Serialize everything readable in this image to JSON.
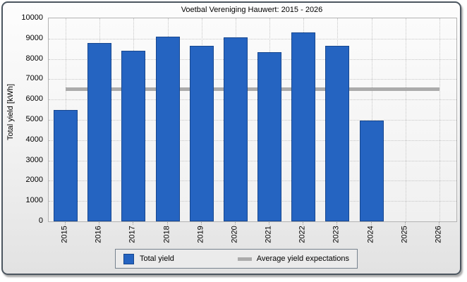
{
  "window": {
    "title": "Voetbal Vereniging Hauwert: 2015 - 2026"
  },
  "chart_data": {
    "type": "bar",
    "title": "Voetbal Vereniging Hauwert: 2015 - 2026",
    "categories": [
      "2015",
      "2016",
      "2017",
      "2018",
      "2019",
      "2020",
      "2021",
      "2022",
      "2023",
      "2024",
      "2025",
      "2026"
    ],
    "series": [
      {
        "name": "Total yield",
        "type": "bar",
        "values": [
          5500,
          8800,
          8400,
          9100,
          8650,
          9050,
          8350,
          9300,
          8650,
          4950,
          null,
          null
        ]
      },
      {
        "name": "Average yield expectations",
        "type": "line",
        "value": 6500
      }
    ],
    "xlabel": "",
    "ylabel": "Total yield [kWh]",
    "ylim": [
      0,
      10000
    ],
    "yticks": [
      0,
      1000,
      2000,
      3000,
      4000,
      5000,
      6000,
      7000,
      8000,
      9000,
      10000
    ],
    "grid": "dotted",
    "legend_position": "bottom"
  },
  "legend": {
    "items": [
      {
        "label": "Total yield",
        "swatch": "blue-square"
      },
      {
        "label": "Average yield expectations",
        "swatch": "gray-line"
      }
    ]
  },
  "colors": {
    "bar_fill": "#2564c1",
    "bar_border": "#17478f",
    "average_line": "#ababab",
    "grid": "#c7c7c7",
    "plot_border": "#b3b3b3",
    "window_border": "#4b555f",
    "legend_bg": "#ebebeb",
    "legend_border": "#76828e"
  }
}
